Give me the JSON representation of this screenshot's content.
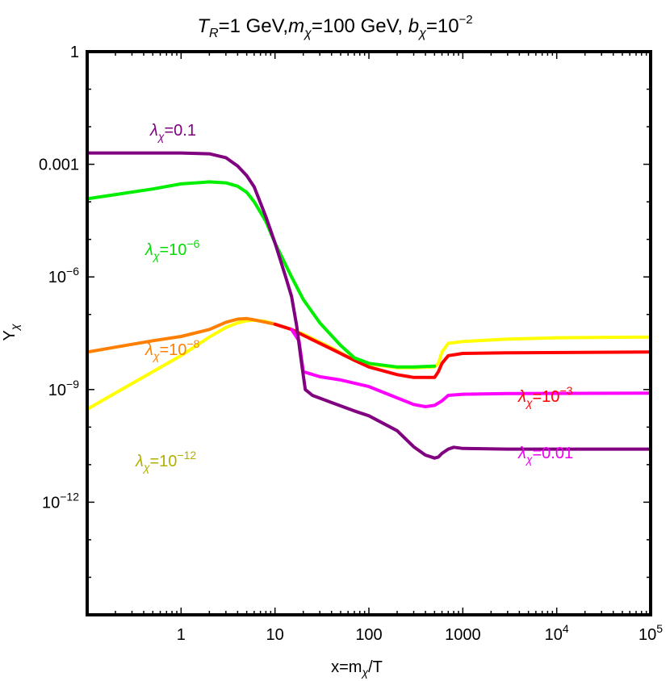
{
  "chart_data": {
    "type": "line",
    "title": {
      "T_sym": "T",
      "T_sub": "R",
      "T_rest": "=1 GeV,",
      "m_sym": "m",
      "m_sub": "χ",
      "m_rest": "=100 GeV, ",
      "b_sym": "b",
      "b_sub": "χ",
      "b_rest": "=10",
      "b_exp": "−2"
    },
    "xlabel": {
      "pre": "x=m",
      "sub": "χ",
      "post": "/T"
    },
    "ylabel": {
      "main": "Y",
      "sub": "χ"
    },
    "x_scale": "log",
    "y_scale": "log",
    "xlim": [
      0.1,
      100000
    ],
    "ylim": [
      1e-15,
      1
    ],
    "x_ticks": [
      {
        "value": 1,
        "label": "1"
      },
      {
        "value": 10,
        "label": "10"
      },
      {
        "value": 100,
        "label": "100"
      },
      {
        "value": 1000,
        "label": "1000"
      },
      {
        "value": 10000,
        "base": "10",
        "exp": "4"
      },
      {
        "value": 100000,
        "base": "10",
        "exp": "5"
      }
    ],
    "y_ticks": [
      {
        "value": 1,
        "label": "1"
      },
      {
        "value": 0.001,
        "label": "0.001"
      },
      {
        "value": 1e-06,
        "base": "10",
        "exp": "−6"
      },
      {
        "value": 1e-09,
        "base": "10",
        "exp": "−9"
      },
      {
        "value": 1e-12,
        "base": "10",
        "exp": "−12"
      }
    ],
    "series": [
      {
        "name": "λχ=10^-12",
        "color": "#ffff00",
        "label": {
          "pre": "λ",
          "sub": "χ",
          "txt": "=10",
          "exp": "−12"
        },
        "label_color": "#b0b000",
        "points": [
          [
            0.1,
            3e-10
          ],
          [
            0.5,
            3e-09
          ],
          [
            1,
            8e-09
          ],
          [
            2,
            2.5e-08
          ],
          [
            3,
            4.5e-08
          ],
          [
            4,
            6e-08
          ],
          [
            5,
            6.8e-08
          ],
          [
            6,
            7e-08
          ],
          [
            8,
            6.5e-08
          ],
          [
            10,
            5.5e-08
          ],
          [
            15,
            4e-08
          ],
          [
            20,
            3e-08
          ],
          [
            40,
            1.3e-08
          ],
          [
            70,
            6e-09
          ],
          [
            100,
            4.8e-09
          ],
          [
            200,
            3.8e-09
          ],
          [
            300,
            3.8e-09
          ],
          [
            500,
            4e-09
          ],
          [
            550,
            5e-09
          ],
          [
            600,
            1e-08
          ],
          [
            700,
            1.7e-08
          ],
          [
            1000,
            1.9e-08
          ],
          [
            3000,
            2.2e-08
          ],
          [
            10000,
            2.4e-08
          ],
          [
            100000,
            2.5e-08
          ]
        ]
      },
      {
        "name": "λχ=10^-8",
        "color": "#ff8000",
        "label": {
          "pre": "λ",
          "sub": "χ",
          "txt": "=10",
          "exp": "−8"
        },
        "label_color": "#ff8000",
        "points": [
          [
            0.1,
            1e-08
          ],
          [
            0.5,
            2e-08
          ],
          [
            1,
            2.6e-08
          ],
          [
            2,
            4e-08
          ],
          [
            3,
            6.2e-08
          ],
          [
            4,
            7.5e-08
          ],
          [
            5,
            7.8e-08
          ],
          [
            6,
            7.2e-08
          ],
          [
            8,
            6.2e-08
          ],
          [
            10,
            5.5e-08
          ]
        ]
      },
      {
        "name": "λχ=10^-3",
        "color": "#ff0000",
        "label": {
          "pre": "λ",
          "sub": "χ",
          "txt": "=10",
          "exp": "−3"
        },
        "label_color": "#ff0000",
        "points": [
          [
            10,
            5.5e-08
          ],
          [
            15,
            4e-08
          ],
          [
            20,
            2.8e-08
          ],
          [
            40,
            1.2e-08
          ],
          [
            70,
            6e-09
          ],
          [
            100,
            4e-09
          ],
          [
            200,
            2.5e-09
          ],
          [
            300,
            2.1e-09
          ],
          [
            500,
            2.1e-09
          ],
          [
            550,
            3e-09
          ],
          [
            600,
            5e-09
          ],
          [
            700,
            8e-09
          ],
          [
            1000,
            9.2e-09
          ],
          [
            3000,
            9.5e-09
          ],
          [
            100000,
            1e-08
          ]
        ]
      },
      {
        "name": "λχ=10^-6",
        "color": "#00ee00",
        "label": {
          "pre": "λ",
          "sub": "χ",
          "txt": "=10",
          "exp": "−6"
        },
        "label_color": "#00dd00",
        "points": [
          [
            0.1,
            0.00012
          ],
          [
            0.5,
            0.00022
          ],
          [
            1,
            0.0003
          ],
          [
            2,
            0.00034
          ],
          [
            3,
            0.00032
          ],
          [
            4,
            0.00026
          ],
          [
            5,
            0.00018
          ],
          [
            6,
            0.0001
          ],
          [
            8,
            3e-05
          ],
          [
            10,
            8e-06
          ],
          [
            15,
            1e-06
          ],
          [
            20,
            2.5e-07
          ],
          [
            30,
            6e-08
          ],
          [
            50,
            1.5e-08
          ],
          [
            70,
            7e-09
          ],
          [
            100,
            5e-09
          ],
          [
            200,
            4e-09
          ],
          [
            300,
            4e-09
          ],
          [
            500,
            4.2e-09
          ]
        ]
      },
      {
        "name": "λχ=0.01",
        "color": "#ff00ff",
        "label": {
          "pre": "λ",
          "sub": "χ",
          "txt": "=0.01",
          "exp": ""
        },
        "label_color": "#ee00ee",
        "points": [
          [
            15,
            4e-08
          ],
          [
            18,
            2e-08
          ],
          [
            20,
            3e-09
          ],
          [
            30,
            2.2e-09
          ],
          [
            50,
            1.8e-09
          ],
          [
            100,
            1.2e-09
          ],
          [
            200,
            6e-10
          ],
          [
            300,
            4e-10
          ],
          [
            400,
            3.5e-10
          ],
          [
            500,
            3.8e-10
          ],
          [
            600,
            5e-10
          ],
          [
            700,
            7e-10
          ],
          [
            1000,
            7.5e-10
          ],
          [
            3000,
            7.8e-10
          ],
          [
            100000,
            8e-10
          ]
        ]
      },
      {
        "name": "λχ=0.1",
        "color": "#800080",
        "label": {
          "pre": "λ",
          "sub": "χ",
          "txt": "=0.1",
          "exp": ""
        },
        "label_color": "#800080",
        "points": [
          [
            0.1,
            0.002
          ],
          [
            0.5,
            0.002
          ],
          [
            1,
            0.002
          ],
          [
            2,
            0.0019
          ],
          [
            3,
            0.0015
          ],
          [
            4,
            0.0009
          ],
          [
            5,
            0.0005
          ],
          [
            6,
            0.00025
          ],
          [
            8,
            4e-05
          ],
          [
            10,
            8e-06
          ],
          [
            13,
            1e-06
          ],
          [
            15,
            3e-07
          ],
          [
            17,
            5e-08
          ],
          [
            19,
            6e-09
          ],
          [
            21,
            1e-09
          ],
          [
            25,
            7e-10
          ],
          [
            40,
            4.5e-10
          ],
          [
            70,
            2.7e-10
          ],
          [
            100,
            2e-10
          ],
          [
            200,
            8e-11
          ],
          [
            300,
            3e-11
          ],
          [
            400,
            1.8e-11
          ],
          [
            500,
            1.5e-11
          ],
          [
            550,
            1.6e-11
          ],
          [
            600,
            2e-11
          ],
          [
            700,
            2.6e-11
          ],
          [
            800,
            2.9e-11
          ],
          [
            1000,
            2.7e-11
          ],
          [
            3000,
            2.6e-11
          ],
          [
            100000,
            2.6e-11
          ]
        ]
      }
    ]
  }
}
